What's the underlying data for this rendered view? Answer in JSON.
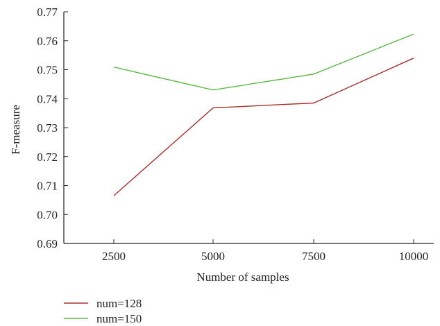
{
  "chart_data": {
    "type": "line",
    "title": "",
    "xlabel": "Number of samples",
    "ylabel": "F-measure",
    "x": [
      2500,
      5000,
      7500,
      10000
    ],
    "x_tick_labels": [
      "2500",
      "5000",
      "7500",
      "10000"
    ],
    "ylim": [
      0.69,
      0.77
    ],
    "y_ticks": [
      0.69,
      0.7,
      0.71,
      0.72,
      0.73,
      0.74,
      0.75,
      0.76,
      0.77
    ],
    "y_tick_labels": [
      "0.69",
      "0.70",
      "0.71",
      "0.72",
      "0.73",
      "0.74",
      "0.75",
      "0.76",
      "0.77"
    ],
    "grid": false,
    "legend_placement": "bottom-left",
    "series": [
      {
        "name": "num=128",
        "color": "#a5312a",
        "values": [
          0.7065,
          0.7368,
          0.7385,
          0.754
        ]
      },
      {
        "name": "num=150",
        "color": "#5cb847",
        "values": [
          0.7509,
          0.743,
          0.7485,
          0.7623
        ]
      }
    ]
  }
}
